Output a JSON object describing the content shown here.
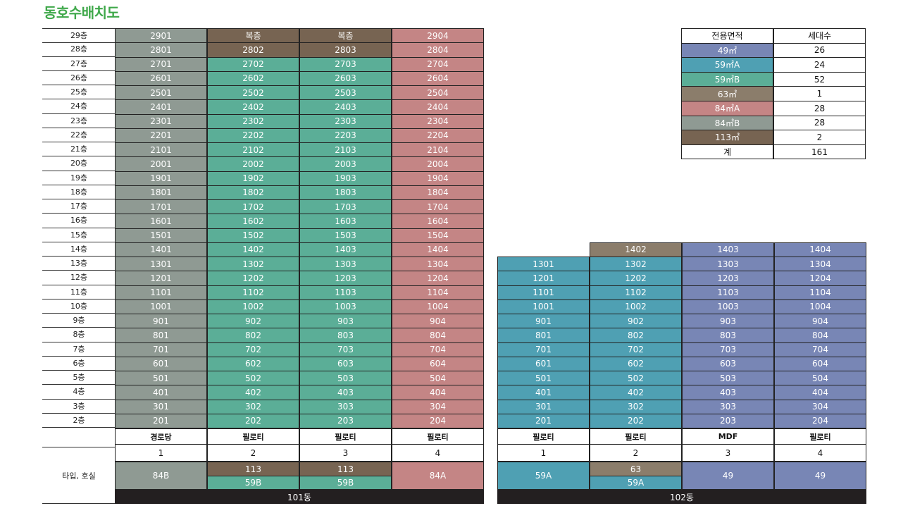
{
  "title": "동호수배치도",
  "colors": {
    "84B": "#8f9a93",
    "113": "#776452",
    "59B": "#5bae97",
    "84A": "#c48585",
    "59A": "#4fa0b3",
    "63": "#8b7d6b",
    "49": "#7886b5"
  },
  "floors": [
    "29층",
    "28층",
    "27층",
    "26층",
    "25층",
    "24층",
    "23층",
    "22층",
    "21층",
    "20층",
    "19층",
    "18층",
    "17층",
    "16층",
    "15층",
    "14층",
    "13층",
    "12층",
    "11층",
    "10층",
    "9층",
    "8층",
    "7층",
    "6층",
    "5층",
    "4층",
    "3층",
    "2층"
  ],
  "building101": {
    "name": "101동",
    "columns": [
      {
        "ground": "경로당",
        "line": "1",
        "types": [
          {
            "label": "84B",
            "color": "84B"
          }
        ],
        "units": [
          "2901",
          "2801",
          "2701",
          "2601",
          "2501",
          "2401",
          "2301",
          "2201",
          "2101",
          "2001",
          "1901",
          "1801",
          "1701",
          "1601",
          "1501",
          "1401",
          "1301",
          "1201",
          "1101",
          "1001",
          "901",
          "801",
          "701",
          "601",
          "501",
          "401",
          "301",
          "201"
        ],
        "unitColors": [
          "84B",
          "84B",
          "84B",
          "84B",
          "84B",
          "84B",
          "84B",
          "84B",
          "84B",
          "84B",
          "84B",
          "84B",
          "84B",
          "84B",
          "84B",
          "84B",
          "84B",
          "84B",
          "84B",
          "84B",
          "84B",
          "84B",
          "84B",
          "84B",
          "84B",
          "84B",
          "84B",
          "84B"
        ]
      },
      {
        "ground": "필로티",
        "line": "2",
        "types": [
          {
            "label": "113",
            "color": "113"
          },
          {
            "label": "59B",
            "color": "59B"
          }
        ],
        "units": [
          "복층",
          "2802",
          "2702",
          "2602",
          "2502",
          "2402",
          "2302",
          "2202",
          "2102",
          "2002",
          "1902",
          "1802",
          "1702",
          "1602",
          "1502",
          "1402",
          "1302",
          "1202",
          "1102",
          "1002",
          "902",
          "802",
          "702",
          "602",
          "502",
          "402",
          "302",
          "202"
        ],
        "unitColors": [
          "113",
          "113",
          "59B",
          "59B",
          "59B",
          "59B",
          "59B",
          "59B",
          "59B",
          "59B",
          "59B",
          "59B",
          "59B",
          "59B",
          "59B",
          "59B",
          "59B",
          "59B",
          "59B",
          "59B",
          "59B",
          "59B",
          "59B",
          "59B",
          "59B",
          "59B",
          "59B",
          "59B"
        ]
      },
      {
        "ground": "필로티",
        "line": "3",
        "types": [
          {
            "label": "113",
            "color": "113"
          },
          {
            "label": "59B",
            "color": "59B"
          }
        ],
        "units": [
          "복층",
          "2803",
          "2703",
          "2603",
          "2503",
          "2403",
          "2303",
          "2203",
          "2103",
          "2003",
          "1903",
          "1803",
          "1703",
          "1603",
          "1503",
          "1403",
          "1303",
          "1203",
          "1103",
          "1003",
          "903",
          "803",
          "703",
          "603",
          "503",
          "403",
          "303",
          "203"
        ],
        "unitColors": [
          "113",
          "113",
          "59B",
          "59B",
          "59B",
          "59B",
          "59B",
          "59B",
          "59B",
          "59B",
          "59B",
          "59B",
          "59B",
          "59B",
          "59B",
          "59B",
          "59B",
          "59B",
          "59B",
          "59B",
          "59B",
          "59B",
          "59B",
          "59B",
          "59B",
          "59B",
          "59B",
          "59B"
        ]
      },
      {
        "ground": "필로티",
        "line": "4",
        "types": [
          {
            "label": "84A",
            "color": "84A"
          }
        ],
        "units": [
          "2904",
          "2804",
          "2704",
          "2604",
          "2504",
          "2404",
          "2304",
          "2204",
          "2104",
          "2004",
          "1904",
          "1804",
          "1704",
          "1604",
          "1504",
          "1404",
          "1304",
          "1204",
          "1104",
          "1004",
          "904",
          "804",
          "704",
          "604",
          "504",
          "404",
          "304",
          "204"
        ],
        "unitColors": [
          "84A",
          "84A",
          "84A",
          "84A",
          "84A",
          "84A",
          "84A",
          "84A",
          "84A",
          "84A",
          "84A",
          "84A",
          "84A",
          "84A",
          "84A",
          "84A",
          "84A",
          "84A",
          "84A",
          "84A",
          "84A",
          "84A",
          "84A",
          "84A",
          "84A",
          "84A",
          "84A",
          "84A"
        ]
      }
    ]
  },
  "building102": {
    "name": "102동",
    "columns": [
      {
        "ground": "필로티",
        "line": "1",
        "types": [
          {
            "label": "59A",
            "color": "59A"
          }
        ],
        "units": [
          "1301",
          "1201",
          "1101",
          "1001",
          "901",
          "801",
          "701",
          "601",
          "501",
          "401",
          "301",
          "201"
        ],
        "unitColor": "59A",
        "topFloor": 13
      },
      {
        "ground": "필로티",
        "line": "2",
        "types": [
          {
            "label": "63",
            "color": "63"
          },
          {
            "label": "59A",
            "color": "59A"
          }
        ],
        "units": [
          "1402",
          "1302",
          "1202",
          "1102",
          "1002",
          "902",
          "802",
          "702",
          "602",
          "502",
          "402",
          "302",
          "202"
        ],
        "unitColors": [
          "63",
          "59A",
          "59A",
          "59A",
          "59A",
          "59A",
          "59A",
          "59A",
          "59A",
          "59A",
          "59A",
          "59A",
          "59A"
        ],
        "topFloor": 14
      },
      {
        "ground": "MDF",
        "line": "3",
        "types": [
          {
            "label": "49",
            "color": "49"
          }
        ],
        "units": [
          "1403",
          "1303",
          "1203",
          "1103",
          "1003",
          "903",
          "803",
          "703",
          "603",
          "503",
          "403",
          "303",
          "203"
        ],
        "unitColor": "49",
        "topFloor": 14
      },
      {
        "ground": "필로티",
        "line": "4",
        "types": [
          {
            "label": "49",
            "color": "49"
          }
        ],
        "units": [
          "1404",
          "1304",
          "1204",
          "1104",
          "1004",
          "904",
          "804",
          "704",
          "604",
          "504",
          "404",
          "304",
          "204"
        ],
        "unitColor": "49",
        "topFloor": 14
      }
    ]
  },
  "bottomLabel": "타입, 호실",
  "legend": {
    "headers": [
      "전용면적",
      "세대수"
    ],
    "rows": [
      {
        "label": "49㎡",
        "count": "26",
        "color": "49"
      },
      {
        "label": "59㎡A",
        "count": "24",
        "color": "59A"
      },
      {
        "label": "59㎡B",
        "count": "52",
        "color": "59B"
      },
      {
        "label": "63㎡",
        "count": "1",
        "color": "63"
      },
      {
        "label": "84㎡A",
        "count": "28",
        "color": "84A"
      },
      {
        "label": "84㎡B",
        "count": "28",
        "color": "84B"
      },
      {
        "label": "113㎡",
        "count": "2",
        "color": "113"
      }
    ],
    "total": {
      "label": "계",
      "count": "161"
    }
  }
}
